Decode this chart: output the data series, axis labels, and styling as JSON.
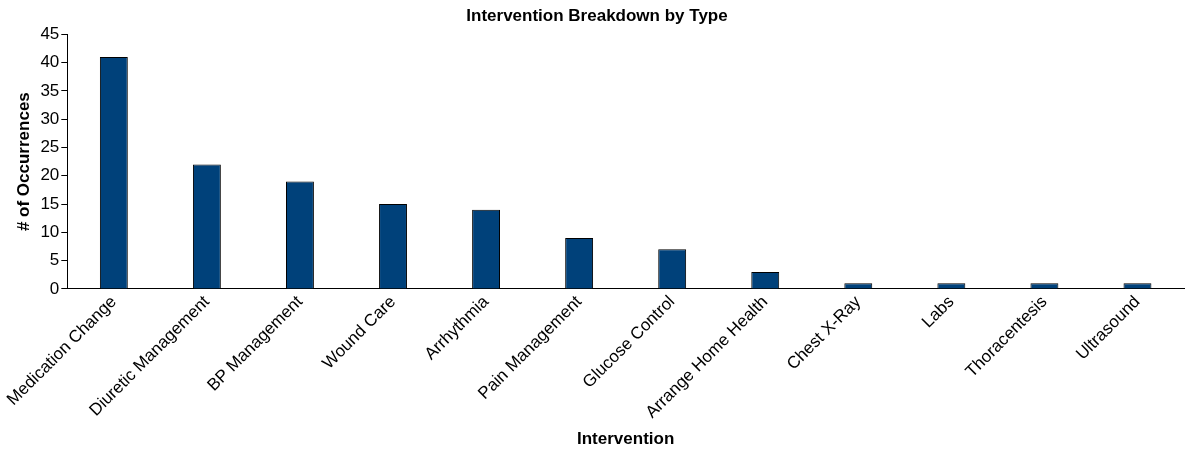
{
  "chart_data": {
    "type": "bar",
    "title": "Intervention Breakdown by Type",
    "xlabel": "Intervention",
    "ylabel": "# of Occurrences",
    "categories": [
      "Medication Change",
      "Diuretic Management",
      "BP Management",
      "Wound Care",
      "Arrhythmia",
      "Pain Management",
      "Glucose Control",
      "Arrange Home Health",
      "Chest X-Ray",
      "Labs",
      "Thoracentesis",
      "Ultrasound"
    ],
    "values": [
      41,
      22,
      19,
      15,
      14,
      9,
      7,
      3,
      1,
      1,
      1,
      1
    ],
    "color": "#00417a",
    "ylim": [
      0,
      45
    ],
    "yticks": [
      0,
      5,
      10,
      15,
      20,
      25,
      30,
      35,
      40,
      45
    ],
    "grid": false,
    "legend": false
  }
}
